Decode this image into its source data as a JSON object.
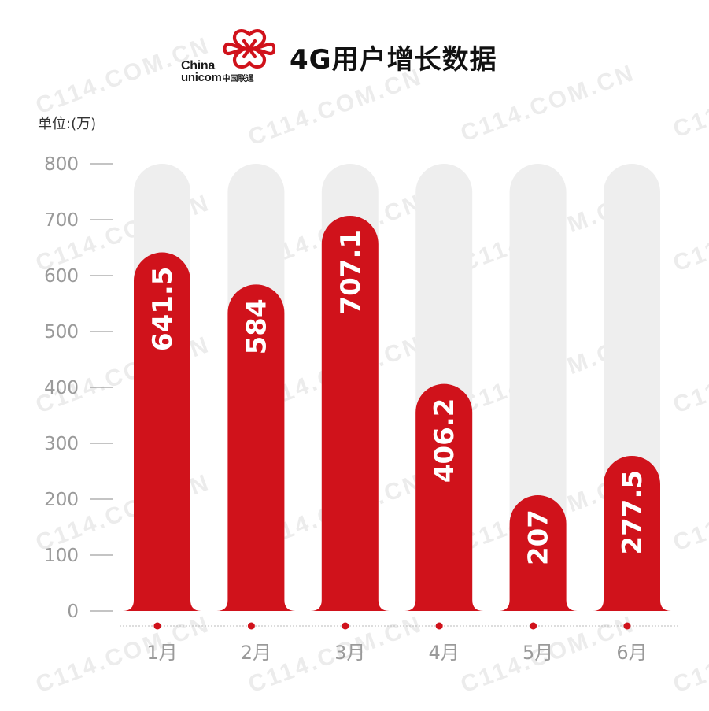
{
  "header": {
    "title": "4G用户增长数据",
    "logo_line1": "China",
    "logo_line2_en": "unicom",
    "logo_line2_cn": "中国联通"
  },
  "watermark": "C114.COM.CN",
  "chart_data": {
    "type": "bar",
    "title": "4G用户增长数据",
    "unit_label": "单位:(万)",
    "categories": [
      "1月",
      "2月",
      "3月",
      "4月",
      "5月",
      "6月"
    ],
    "values": [
      641.5,
      584,
      707.1,
      406.2,
      207,
      277.5
    ],
    "value_labels": [
      "641.5",
      "584",
      "707.1",
      "406.2",
      "207",
      "277.5"
    ],
    "yticks": [
      "0",
      "100",
      "200",
      "300",
      "400",
      "500",
      "600",
      "700",
      "800"
    ],
    "ylim": [
      0,
      800
    ],
    "bar_color": "#d0121b",
    "track_color": "#eeeeee",
    "grid": false,
    "legend": "none"
  }
}
